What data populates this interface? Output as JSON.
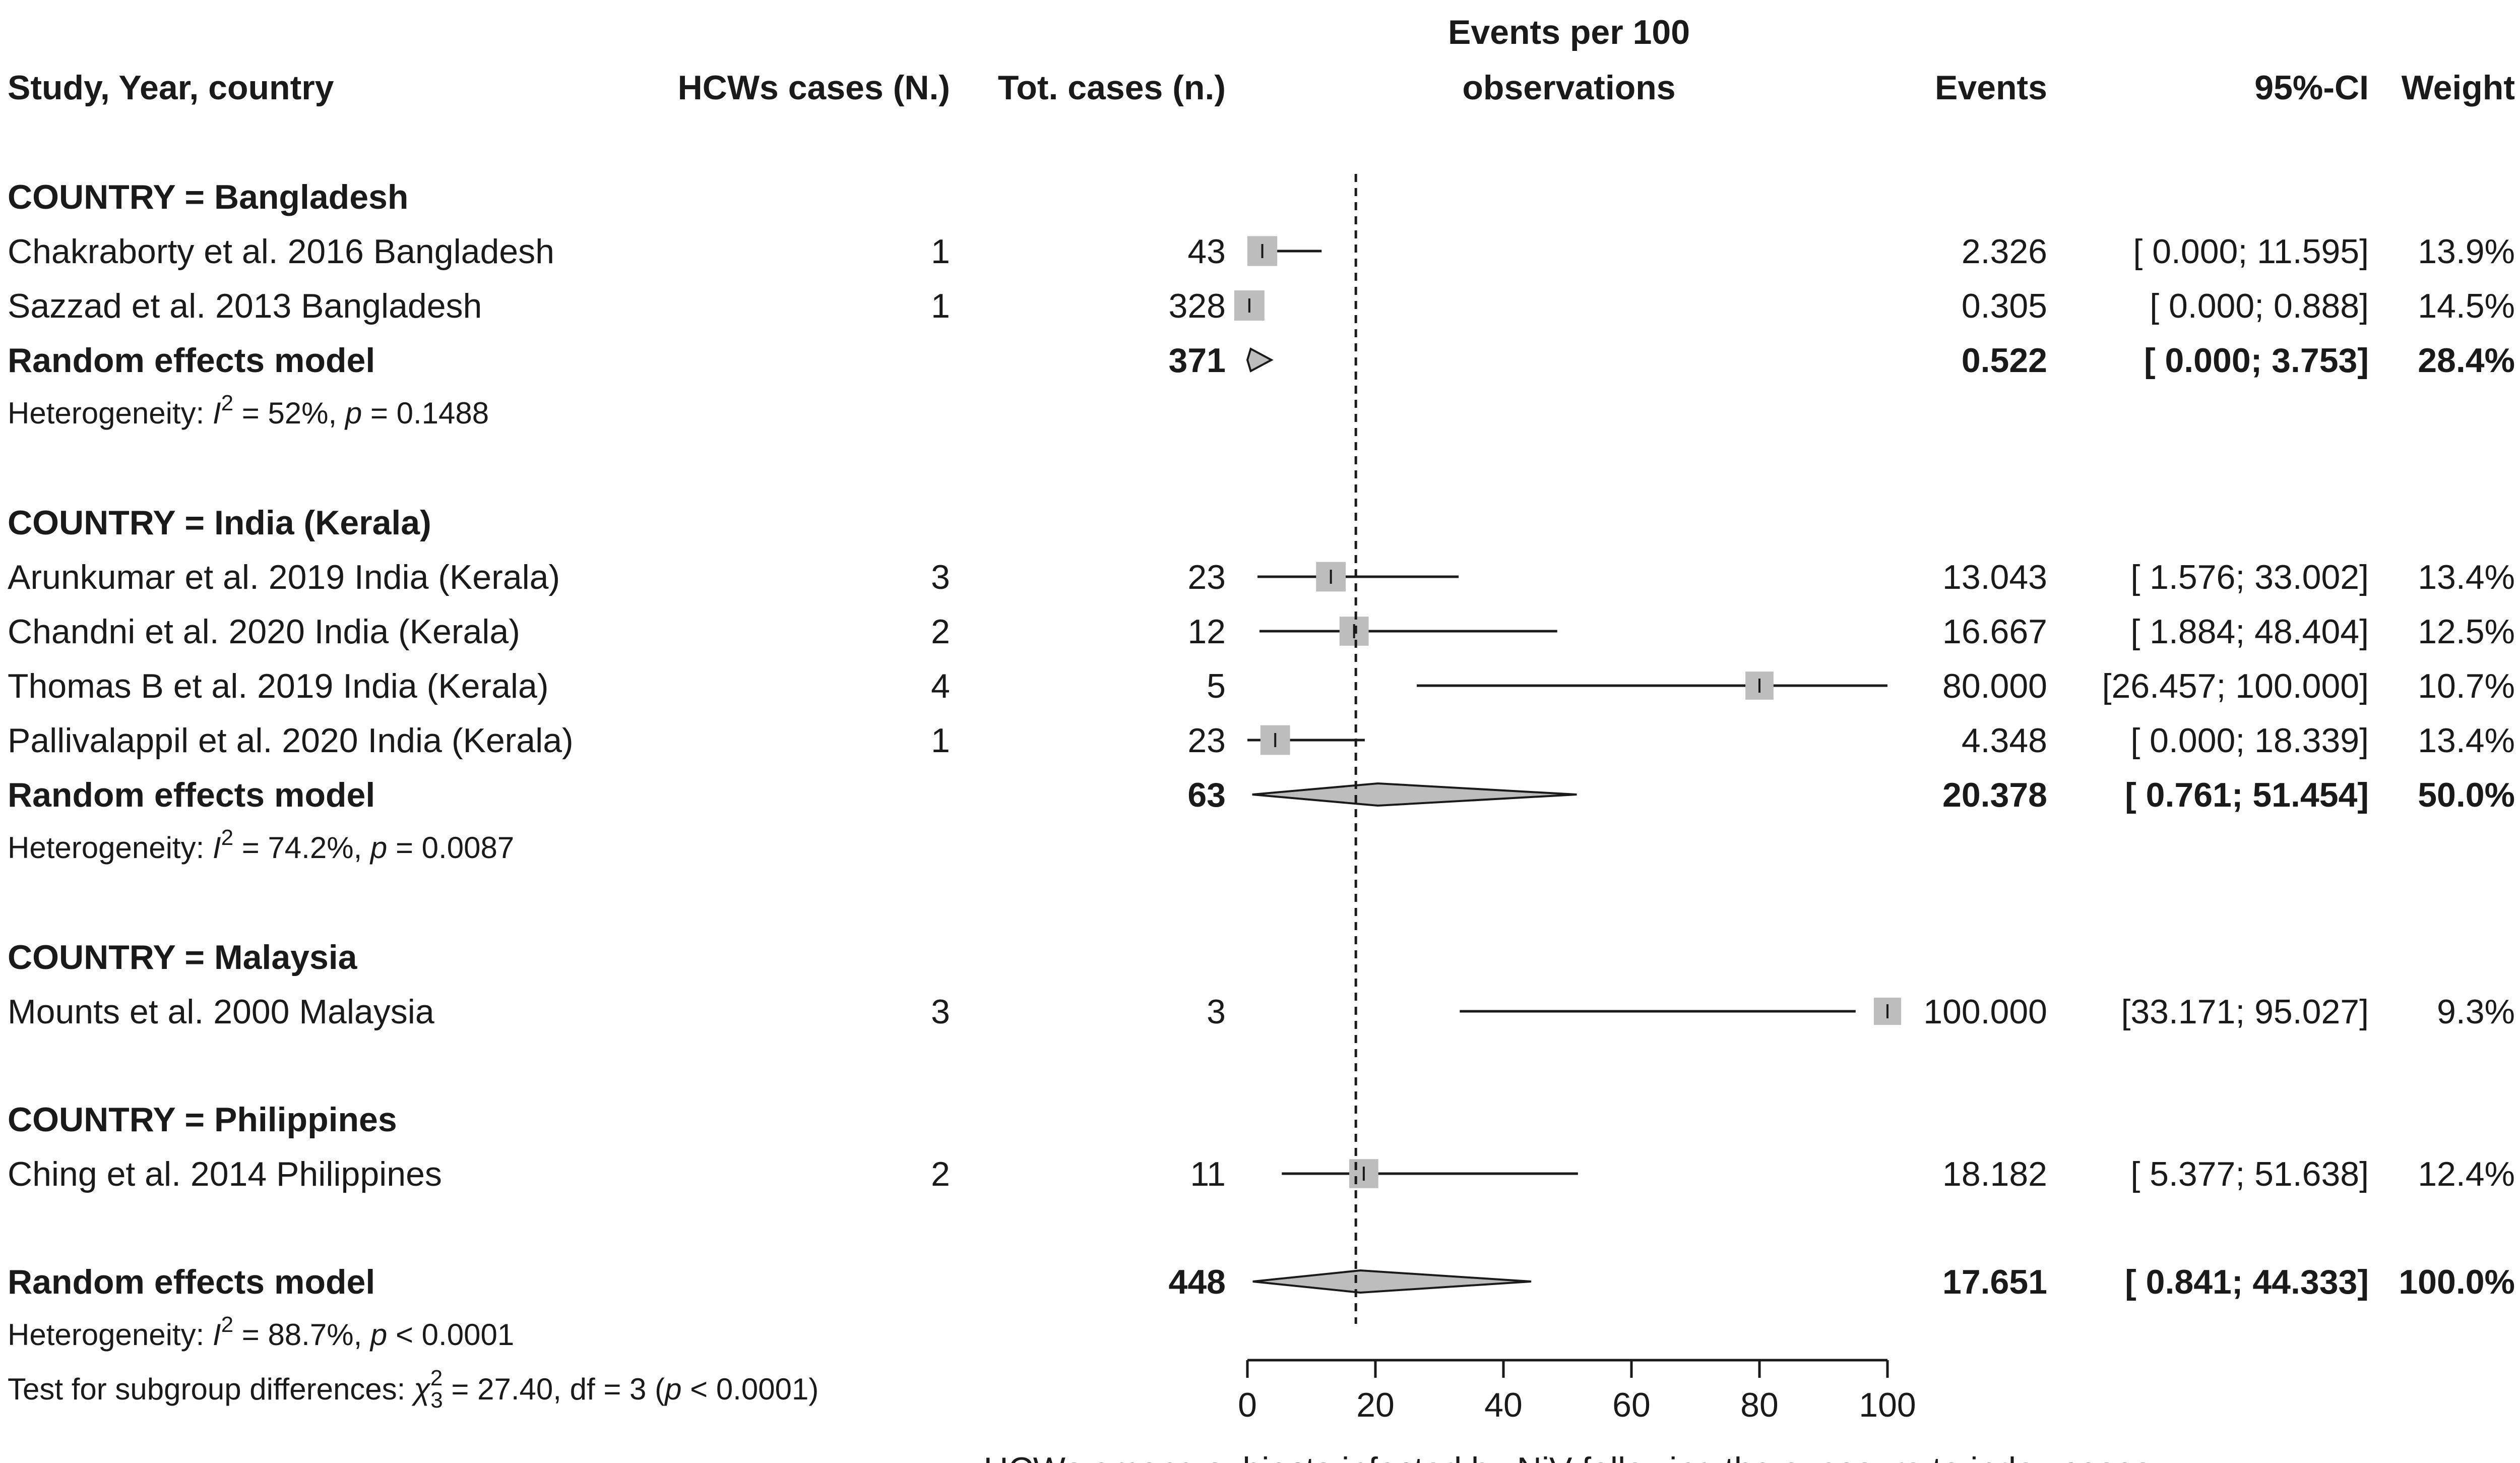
{
  "chart_data": {
    "type": "forest",
    "headers": {
      "study": "Study, Year, country",
      "hcw": "HCWs cases (N.)",
      "tot": "Tot. cases (n.)",
      "events_per_line1": "Events per 100",
      "events_per_line2": "observations",
      "events": "Events",
      "ci": "95%-CI",
      "weight": "Weight"
    },
    "xlabel": "HCWs among subjects infected by NiV following the exposure to index cases",
    "xlim": [
      0,
      100
    ],
    "xticks": [
      0,
      20,
      40,
      60,
      80,
      100
    ],
    "xtick_labels": [
      "0",
      "20",
      "40",
      "60",
      "80",
      "100"
    ],
    "reference_line": 17.651,
    "groups": [
      {
        "label": "COUNTRY = Bangladesh",
        "studies": [
          {
            "name": "Chakraborty et al. 2016 Bangladesh",
            "hcw": "1",
            "tot": "43",
            "est": 2.326,
            "lo": 0.0,
            "hi": 11.595,
            "events": "2.326",
            "ci": "[ 0.000;  11.595]",
            "weight": "13.9%"
          },
          {
            "name": "Sazzad et al. 2013 Bangladesh",
            "hcw": "1",
            "tot": "328",
            "est": 0.305,
            "lo": 0.0,
            "hi": 0.888,
            "events": "0.305",
            "ci": "[ 0.000;   0.888]",
            "weight": "14.5%"
          }
        ],
        "model": {
          "name": "Random effects model",
          "tot": "371",
          "est": 0.522,
          "lo": 0.0,
          "hi": 3.753,
          "events": "0.522",
          "ci": "[ 0.000;   3.753]",
          "weight": "28.4%"
        },
        "het": {
          "prefix": "Heterogeneity: ",
          "i2": "= 52%, ",
          "p": "= 0.1488"
        }
      },
      {
        "label": "COUNTRY = India (Kerala)",
        "studies": [
          {
            "name": "Arunkumar et al. 2019 India (Kerala)",
            "hcw": "3",
            "tot": "23",
            "est": 13.043,
            "lo": 1.576,
            "hi": 33.002,
            "events": "13.043",
            "ci": "[ 1.576;  33.002]",
            "weight": "13.4%"
          },
          {
            "name": "Chandni et al. 2020 India (Kerala)",
            "hcw": "2",
            "tot": "12",
            "est": 16.667,
            "lo": 1.884,
            "hi": 48.404,
            "events": "16.667",
            "ci": "[ 1.884;  48.404]",
            "weight": "12.5%"
          },
          {
            "name": "Thomas B et al. 2019 India (Kerala)",
            "hcw": "4",
            "tot": "5",
            "est": 80.0,
            "lo": 26.457,
            "hi": 100.0,
            "events": "80.000",
            "ci": "[26.457; 100.000]",
            "weight": "10.7%"
          },
          {
            "name": "Pallivalappil et al. 2020 India (Kerala)",
            "hcw": "1",
            "tot": "23",
            "est": 4.348,
            "lo": 0.0,
            "hi": 18.339,
            "events": "4.348",
            "ci": "[ 0.000;  18.339]",
            "weight": "13.4%"
          }
        ],
        "model": {
          "name": "Random effects model",
          "tot": "63",
          "est": 20.378,
          "lo": 0.761,
          "hi": 51.454,
          "events": "20.378",
          "ci": "[ 0.761;  51.454]",
          "weight": "50.0%"
        },
        "het": {
          "prefix": "Heterogeneity: ",
          "i2": "= 74.2%, ",
          "p": "= 0.0087"
        }
      },
      {
        "label": "COUNTRY = Malaysia",
        "studies": [
          {
            "name": "Mounts et al. 2000 Malaysia",
            "hcw": "3",
            "tot": "3",
            "est": 100.0,
            "lo": 33.171,
            "hi": 95.027,
            "events": "100.000",
            "ci": "[33.171;  95.027]",
            "weight": "9.3%"
          }
        ],
        "model": null,
        "het": null
      },
      {
        "label": "COUNTRY = Philippines",
        "studies": [
          {
            "name": "Ching et al. 2014 Philippines",
            "hcw": "2",
            "tot": "11",
            "est": 18.182,
            "lo": 5.377,
            "hi": 51.638,
            "events": "18.182",
            "ci": "[ 5.377;  51.638]",
            "weight": "12.4%"
          }
        ],
        "model": null,
        "het": null
      }
    ],
    "overall": {
      "name": "Random effects model",
      "tot": "448",
      "est": 17.651,
      "lo": 0.841,
      "hi": 44.333,
      "events": "17.651",
      "ci": "[ 0.841;  44.333]",
      "weight": "100.0%"
    },
    "overall_het": {
      "prefix": "Heterogeneity: ",
      "i2": "= 88.7%, ",
      "p": "< 0.0001"
    },
    "subgroup_test": {
      "prefix": "Test for subgroup differences: ",
      "chi_sub": "3",
      "chi_sup": "2",
      "stat": " = 27.40, df = 3 (",
      "p": " < 0.0001)"
    },
    "symbols": {
      "I": "I",
      "two": "2",
      "p": "p",
      "chi": "χ"
    }
  }
}
